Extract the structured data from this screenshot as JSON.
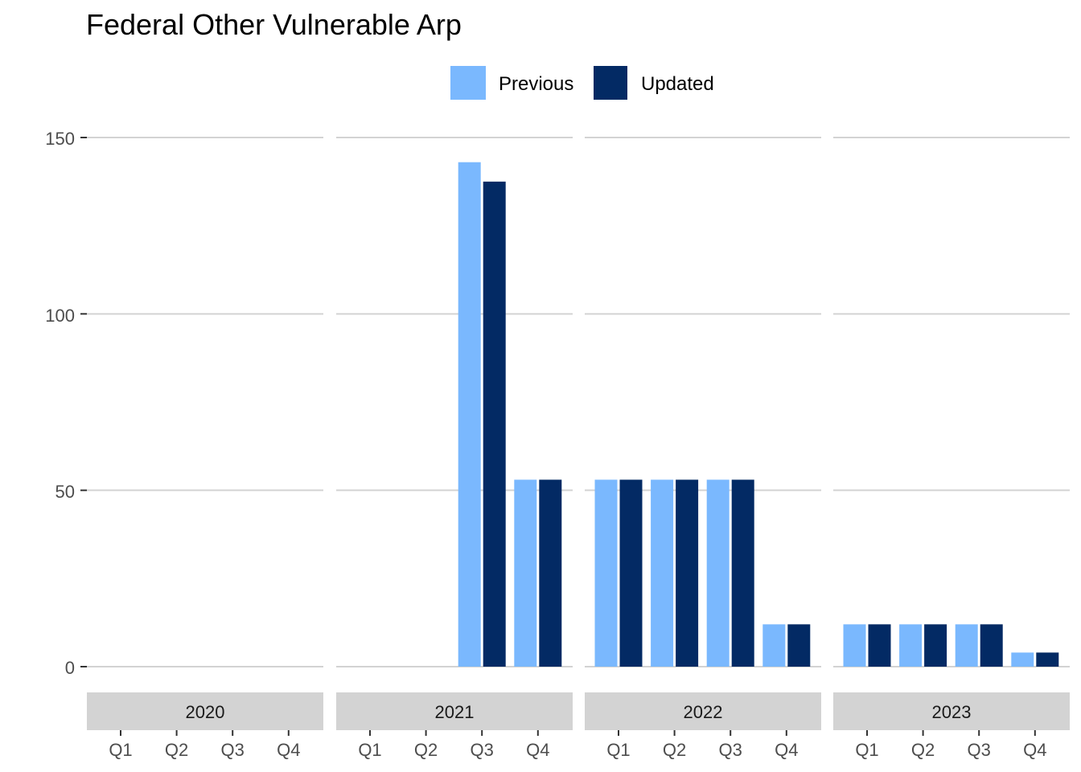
{
  "chart_data": {
    "type": "bar",
    "title": "Federal Other Vulnerable Arp",
    "xlabel": "",
    "ylabel": "",
    "ylim": [
      0,
      160
    ],
    "y_ticks": [
      0,
      50,
      100,
      150
    ],
    "grid": "horizontal major lines",
    "legend_position": "top",
    "facets": [
      "2020",
      "2021",
      "2022",
      "2023"
    ],
    "categories": [
      "Q1",
      "Q2",
      "Q3",
      "Q4"
    ],
    "series": [
      {
        "name": "Previous",
        "color": "#7ab8fe",
        "values": [
          [
            null,
            null,
            null,
            null
          ],
          [
            null,
            null,
            143,
            53
          ],
          [
            53,
            53,
            53,
            12
          ],
          [
            12,
            12,
            12,
            4
          ]
        ]
      },
      {
        "name": "Updated",
        "color": "#032a64",
        "values": [
          [
            null,
            null,
            null,
            null
          ],
          [
            null,
            null,
            137.5,
            53
          ],
          [
            53,
            53,
            53,
            12
          ],
          [
            12,
            12,
            12,
            4
          ]
        ]
      }
    ]
  }
}
